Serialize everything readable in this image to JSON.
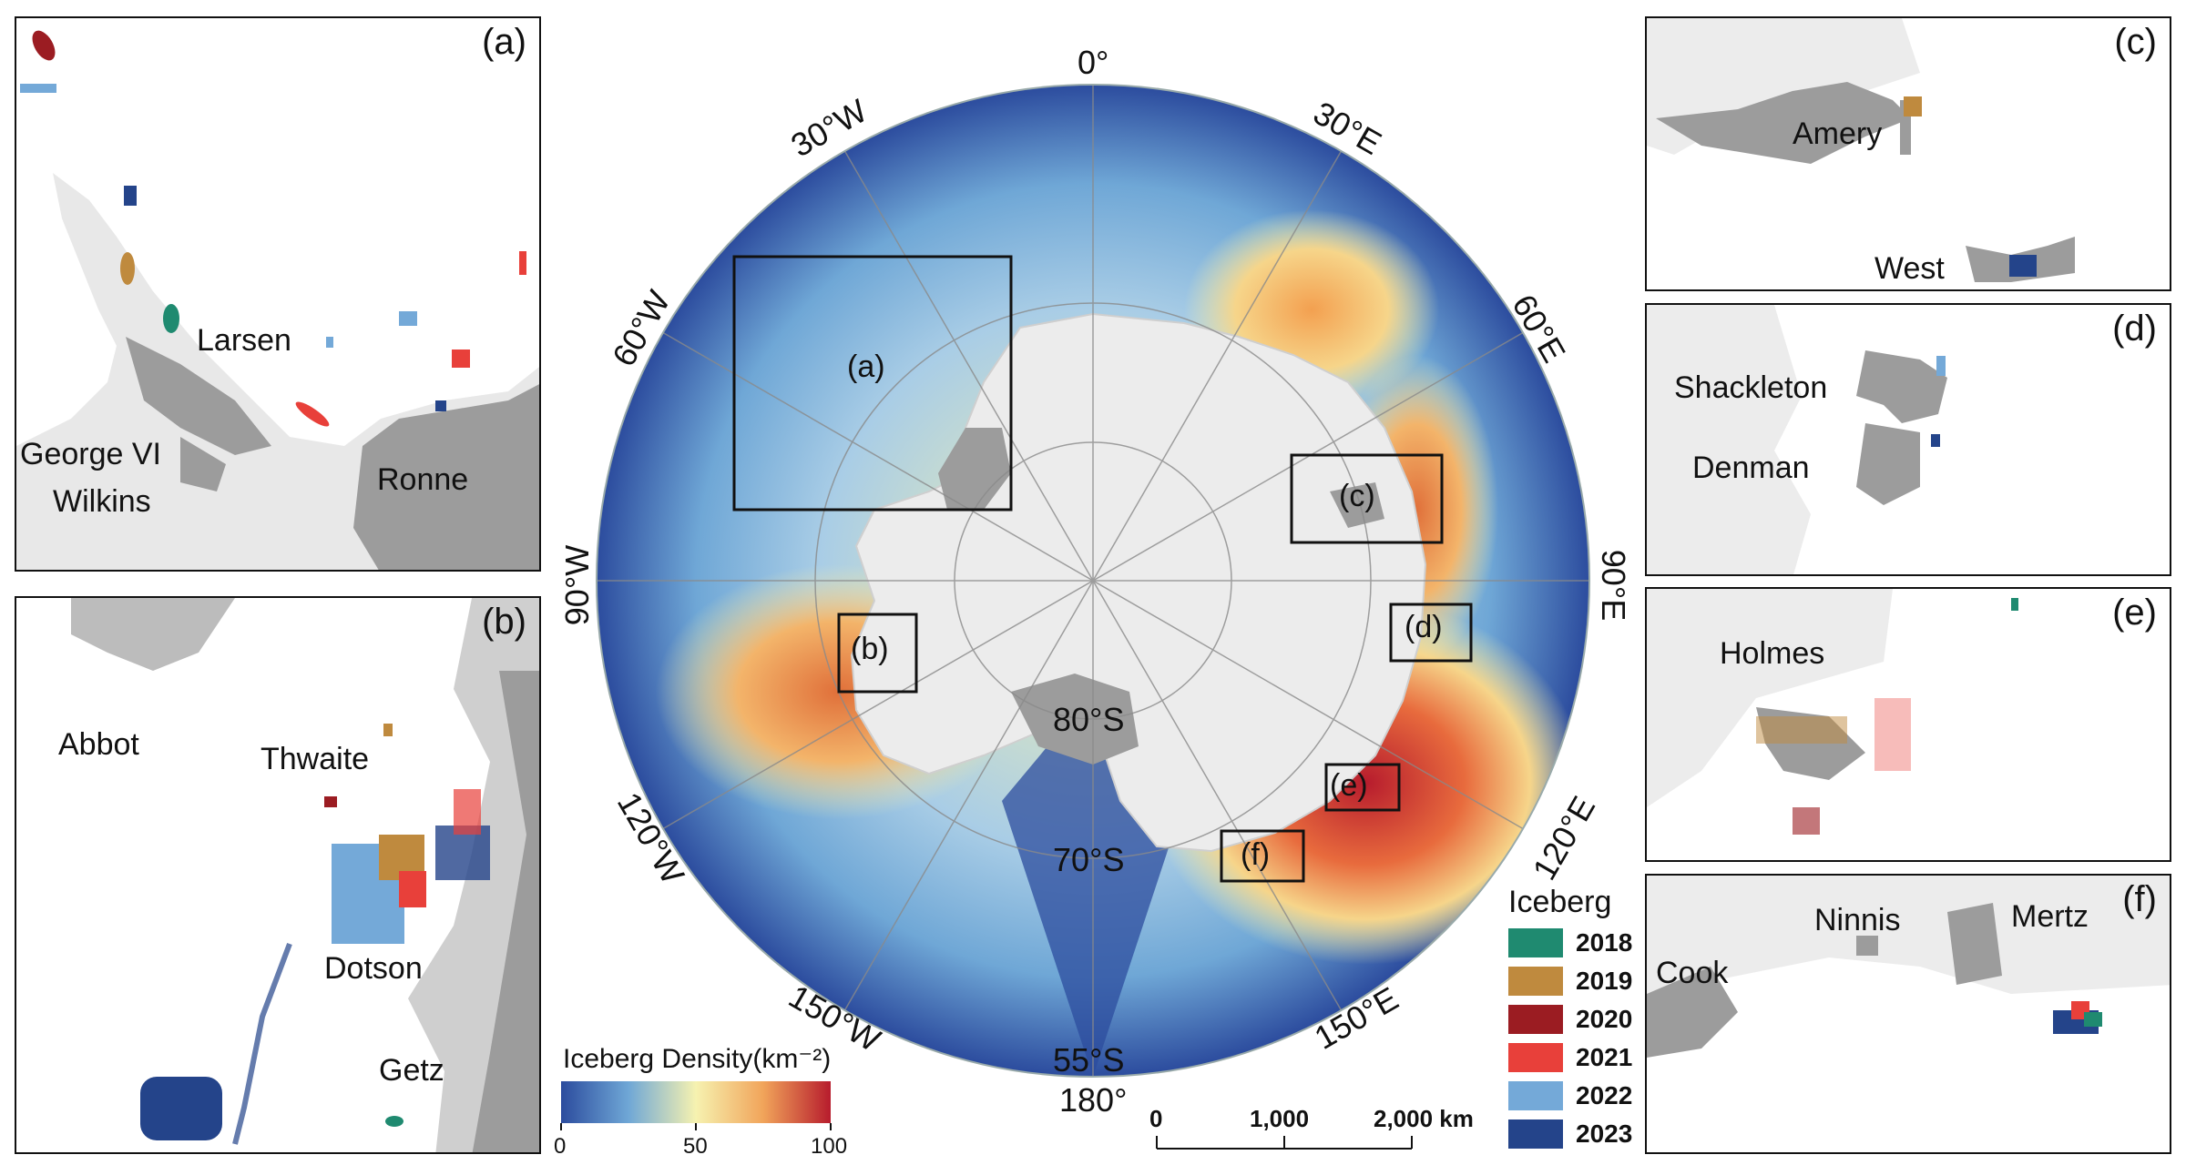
{
  "panels": {
    "a": {
      "label": "(a)",
      "features": [
        "Larsen",
        "George VI",
        "Wilkins",
        "Ronne"
      ]
    },
    "b": {
      "label": "(b)",
      "features": [
        "Abbot",
        "Thwaite",
        "Dotson",
        "Getz"
      ]
    },
    "c": {
      "label": "(c)",
      "features": [
        "Amery",
        "West"
      ]
    },
    "d": {
      "label": "(d)",
      "features": [
        "Shackleton",
        "Denman"
      ]
    },
    "e": {
      "label": "(e)",
      "features": [
        "Holmes"
      ]
    },
    "f": {
      "label": "(f)",
      "features": [
        "Ninnis",
        "Mertz",
        "Cook"
      ]
    }
  },
  "main_map": {
    "longitude_labels": [
      "0°",
      "30°E",
      "60°E",
      "90°E",
      "120°E",
      "150°E",
      "180°",
      "150°W",
      "120°W",
      "90°W",
      "60°W",
      "30°W"
    ],
    "latitude_labels": [
      "80°S",
      "70°S",
      "55°S"
    ],
    "inset_box_labels": [
      "(a)",
      "(b)",
      "(c)",
      "(d)",
      "(e)",
      "(f)"
    ]
  },
  "colorbar": {
    "title": "Iceberg Density(km⁻²)",
    "ticks": [
      "0",
      "50",
      "100"
    ],
    "min": 0,
    "max": 100,
    "colors": [
      "#2c4c9e",
      "#6fa7d6",
      "#f6f2b0",
      "#f1a45a",
      "#b71c2d"
    ]
  },
  "legend": {
    "title": "Iceberg",
    "items": [
      {
        "year": "2018",
        "color": "#1f8a70"
      },
      {
        "year": "2019",
        "color": "#bf8a3e"
      },
      {
        "year": "2020",
        "color": "#9b1c22"
      },
      {
        "year": "2021",
        "color": "#e8403a"
      },
      {
        "year": "2022",
        "color": "#74a9d8"
      },
      {
        "year": "2023",
        "color": "#24448a"
      }
    ]
  },
  "scalebar": {
    "ticks": [
      "0",
      "1,000",
      "2,000 km"
    ]
  }
}
